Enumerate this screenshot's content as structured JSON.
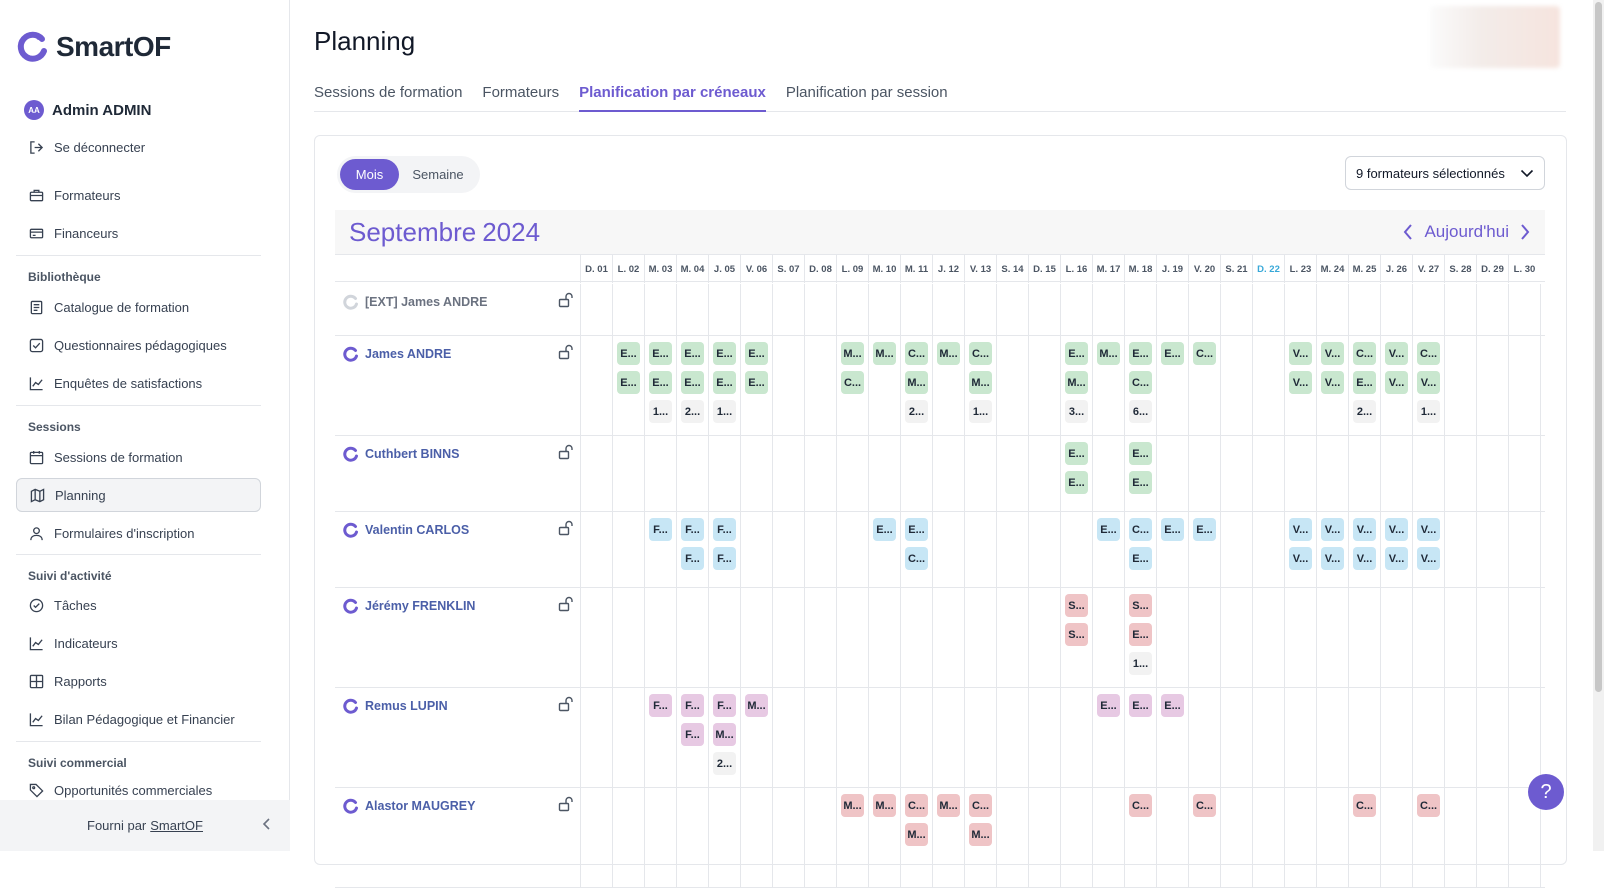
{
  "brand": {
    "name": "SmartOF"
  },
  "user": {
    "initials": "AA",
    "name": "Admin ADMIN"
  },
  "nav": {
    "logout": "Se déconnecter",
    "formateurs": "Formateurs",
    "financeurs": "Financeurs",
    "bibliotheque_title": "Bibliothèque",
    "catalogue": "Catalogue de formation",
    "questionnaires": "Questionnaires pédagogiques",
    "enquetes": "Enquêtes de satisfactions",
    "sessions_title": "Sessions",
    "sessions": "Sessions de formation",
    "planning": "Planning",
    "formulaires": "Formulaires d'inscription",
    "suivi_activite_title": "Suivi d'activité",
    "taches": "Tâches",
    "indicateurs": "Indicateurs",
    "rapports": "Rapports",
    "bilan": "Bilan Pédagogique et Financier",
    "suivi_commercial_title": "Suivi commercial",
    "opportunites": "Opportunités commerciales"
  },
  "footer": {
    "text": "Fourni par",
    "link": "SmartOF"
  },
  "page": {
    "title": "Planning"
  },
  "tabs": [
    "Sessions de formation",
    "Formateurs",
    "Planification par créneaux",
    "Planification par session"
  ],
  "view_toggle": {
    "month": "Mois",
    "week": "Semaine"
  },
  "trainer_select": {
    "value": "9 formateurs sélectionnés"
  },
  "calendar": {
    "month": "Septembre",
    "year": "2024",
    "today_label": "Aujourd'hui",
    "days": [
      "D. 01",
      "L. 02",
      "M. 03",
      "M. 04",
      "J. 05",
      "V. 06",
      "S. 07",
      "D. 08",
      "L. 09",
      "M. 10",
      "M. 11",
      "J. 12",
      "V. 13",
      "S. 14",
      "D. 15",
      "L. 16",
      "M. 17",
      "M. 18",
      "J. 19",
      "V. 20",
      "S. 21",
      "D. 22",
      "L. 23",
      "M. 24",
      "M. 25",
      "J. 26",
      "V. 27",
      "S. 28",
      "D. 29",
      "L. 30"
    ],
    "today_index": 21
  },
  "trainers": [
    {
      "name": "[EXT] James ANDRE",
      "ext": true,
      "events": []
    },
    {
      "name": "James ANDRE",
      "ext": false,
      "events": [
        {
          "day": 1,
          "slot": 0,
          "t": "E...",
          "c": "g"
        },
        {
          "day": 1,
          "slot": 1,
          "t": "E...",
          "c": "g"
        },
        {
          "day": 2,
          "slot": 0,
          "t": "E...",
          "c": "g"
        },
        {
          "day": 2,
          "slot": 1,
          "t": "E...",
          "c": "g"
        },
        {
          "day": 2,
          "slot": 2,
          "t": "1...",
          "c": "n"
        },
        {
          "day": 3,
          "slot": 0,
          "t": "E...",
          "c": "g"
        },
        {
          "day": 3,
          "slot": 1,
          "t": "E...",
          "c": "g"
        },
        {
          "day": 3,
          "slot": 2,
          "t": "2...",
          "c": "n"
        },
        {
          "day": 4,
          "slot": 0,
          "t": "E...",
          "c": "g"
        },
        {
          "day": 4,
          "slot": 1,
          "t": "E...",
          "c": "g"
        },
        {
          "day": 4,
          "slot": 2,
          "t": "1...",
          "c": "n"
        },
        {
          "day": 5,
          "slot": 0,
          "t": "E...",
          "c": "g"
        },
        {
          "day": 5,
          "slot": 1,
          "t": "E...",
          "c": "g"
        },
        {
          "day": 8,
          "slot": 0,
          "t": "M...",
          "c": "g"
        },
        {
          "day": 8,
          "slot": 1,
          "t": "C...",
          "c": "g"
        },
        {
          "day": 9,
          "slot": 0,
          "t": "M...",
          "c": "g"
        },
        {
          "day": 10,
          "slot": 0,
          "t": "C...",
          "c": "g"
        },
        {
          "day": 10,
          "slot": 1,
          "t": "M...",
          "c": "g"
        },
        {
          "day": 10,
          "slot": 2,
          "t": "2...",
          "c": "n"
        },
        {
          "day": 11,
          "slot": 0,
          "t": "M...",
          "c": "g"
        },
        {
          "day": 12,
          "slot": 0,
          "t": "C...",
          "c": "g"
        },
        {
          "day": 12,
          "slot": 1,
          "t": "M...",
          "c": "g"
        },
        {
          "day": 12,
          "slot": 2,
          "t": "1...",
          "c": "n"
        },
        {
          "day": 15,
          "slot": 0,
          "t": "E...",
          "c": "g"
        },
        {
          "day": 15,
          "slot": 1,
          "t": "M...",
          "c": "g"
        },
        {
          "day": 15,
          "slot": 2,
          "t": "3...",
          "c": "n"
        },
        {
          "day": 16,
          "slot": 0,
          "t": "M...",
          "c": "g"
        },
        {
          "day": 17,
          "slot": 0,
          "t": "E...",
          "c": "g"
        },
        {
          "day": 17,
          "slot": 1,
          "t": "C...",
          "c": "g"
        },
        {
          "day": 17,
          "slot": 2,
          "t": "6...",
          "c": "n"
        },
        {
          "day": 18,
          "slot": 0,
          "t": "E...",
          "c": "g"
        },
        {
          "day": 19,
          "slot": 0,
          "t": "C...",
          "c": "g"
        },
        {
          "day": 22,
          "slot": 0,
          "t": "V...",
          "c": "g"
        },
        {
          "day": 22,
          "slot": 1,
          "t": "V...",
          "c": "g"
        },
        {
          "day": 23,
          "slot": 0,
          "t": "V...",
          "c": "g"
        },
        {
          "day": 23,
          "slot": 1,
          "t": "V...",
          "c": "g"
        },
        {
          "day": 24,
          "slot": 0,
          "t": "C...",
          "c": "g"
        },
        {
          "day": 24,
          "slot": 1,
          "t": "E...",
          "c": "g"
        },
        {
          "day": 24,
          "slot": 2,
          "t": "2...",
          "c": "n"
        },
        {
          "day": 25,
          "slot": 0,
          "t": "V...",
          "c": "g"
        },
        {
          "day": 25,
          "slot": 1,
          "t": "V...",
          "c": "g"
        },
        {
          "day": 26,
          "slot": 0,
          "t": "C...",
          "c": "g"
        },
        {
          "day": 26,
          "slot": 1,
          "t": "V...",
          "c": "g"
        },
        {
          "day": 26,
          "slot": 2,
          "t": "1...",
          "c": "n"
        }
      ]
    },
    {
      "name": "Cuthbert BINNS",
      "ext": false,
      "events": [
        {
          "day": 15,
          "slot": 0,
          "t": "E...",
          "c": "g"
        },
        {
          "day": 15,
          "slot": 1,
          "t": "E...",
          "c": "g"
        },
        {
          "day": 17,
          "slot": 0,
          "t": "E...",
          "c": "g"
        },
        {
          "day": 17,
          "slot": 1,
          "t": "E...",
          "c": "g"
        }
      ]
    },
    {
      "name": "Valentin CARLOS",
      "ext": false,
      "events": [
        {
          "day": 2,
          "slot": 0,
          "t": "F...",
          "c": "b"
        },
        {
          "day": 3,
          "slot": 0,
          "t": "F...",
          "c": "b"
        },
        {
          "day": 3,
          "slot": 1,
          "t": "F...",
          "c": "b"
        },
        {
          "day": 4,
          "slot": 0,
          "t": "F...",
          "c": "b"
        },
        {
          "day": 4,
          "slot": 1,
          "t": "F...",
          "c": "b"
        },
        {
          "day": 9,
          "slot": 0,
          "t": "E...",
          "c": "b"
        },
        {
          "day": 10,
          "slot": 0,
          "t": "E...",
          "c": "b"
        },
        {
          "day": 10,
          "slot": 1,
          "t": "C...",
          "c": "b"
        },
        {
          "day": 16,
          "slot": 0,
          "t": "E...",
          "c": "b"
        },
        {
          "day": 17,
          "slot": 0,
          "t": "C...",
          "c": "b"
        },
        {
          "day": 17,
          "slot": 1,
          "t": "E...",
          "c": "b"
        },
        {
          "day": 18,
          "slot": 0,
          "t": "E...",
          "c": "b"
        },
        {
          "day": 19,
          "slot": 0,
          "t": "E...",
          "c": "b"
        },
        {
          "day": 22,
          "slot": 0,
          "t": "V...",
          "c": "b"
        },
        {
          "day": 22,
          "slot": 1,
          "t": "V...",
          "c": "b"
        },
        {
          "day": 23,
          "slot": 0,
          "t": "V...",
          "c": "b"
        },
        {
          "day": 23,
          "slot": 1,
          "t": "V...",
          "c": "b"
        },
        {
          "day": 24,
          "slot": 0,
          "t": "V...",
          "c": "b"
        },
        {
          "day": 24,
          "slot": 1,
          "t": "V...",
          "c": "b"
        },
        {
          "day": 25,
          "slot": 0,
          "t": "V...",
          "c": "b"
        },
        {
          "day": 25,
          "slot": 1,
          "t": "V...",
          "c": "b"
        },
        {
          "day": 26,
          "slot": 0,
          "t": "V...",
          "c": "b"
        },
        {
          "day": 26,
          "slot": 1,
          "t": "V...",
          "c": "b"
        }
      ]
    },
    {
      "name": "Jérémy FRENKLIN",
      "ext": false,
      "events": [
        {
          "day": 15,
          "slot": 0,
          "t": "S...",
          "c": "r"
        },
        {
          "day": 15,
          "slot": 1,
          "t": "S...",
          "c": "r"
        },
        {
          "day": 17,
          "slot": 0,
          "t": "S...",
          "c": "r"
        },
        {
          "day": 17,
          "slot": 1,
          "t": "E...",
          "c": "r"
        },
        {
          "day": 17,
          "slot": 2,
          "t": "1...",
          "c": "n"
        }
      ]
    },
    {
      "name": "Remus LUPIN",
      "ext": false,
      "events": [
        {
          "day": 2,
          "slot": 0,
          "t": "F...",
          "c": "p"
        },
        {
          "day": 3,
          "slot": 0,
          "t": "F...",
          "c": "p"
        },
        {
          "day": 3,
          "slot": 1,
          "t": "F...",
          "c": "p"
        },
        {
          "day": 4,
          "slot": 0,
          "t": "F...",
          "c": "p"
        },
        {
          "day": 4,
          "slot": 1,
          "t": "M...",
          "c": "p"
        },
        {
          "day": 4,
          "slot": 2,
          "t": "2...",
          "c": "n"
        },
        {
          "day": 5,
          "slot": 0,
          "t": "M...",
          "c": "p"
        },
        {
          "day": 16,
          "slot": 0,
          "t": "E...",
          "c": "p"
        },
        {
          "day": 17,
          "slot": 0,
          "t": "E...",
          "c": "p"
        },
        {
          "day": 18,
          "slot": 0,
          "t": "E...",
          "c": "p"
        }
      ]
    },
    {
      "name": "Alastor MAUGREY",
      "ext": false,
      "events": [
        {
          "day": 8,
          "slot": 0,
          "t": "M...",
          "c": "r"
        },
        {
          "day": 9,
          "slot": 0,
          "t": "M...",
          "c": "r"
        },
        {
          "day": 10,
          "slot": 0,
          "t": "C...",
          "c": "r"
        },
        {
          "day": 10,
          "slot": 1,
          "t": "M...",
          "c": "r"
        },
        {
          "day": 11,
          "slot": 0,
          "t": "M...",
          "c": "r"
        },
        {
          "day": 12,
          "slot": 0,
          "t": "C...",
          "c": "r"
        },
        {
          "day": 12,
          "slot": 1,
          "t": "M...",
          "c": "r"
        },
        {
          "day": 17,
          "slot": 0,
          "t": "C...",
          "c": "r"
        },
        {
          "day": 19,
          "slot": 0,
          "t": "C...",
          "c": "r"
        },
        {
          "day": 24,
          "slot": 0,
          "t": "C...",
          "c": "r"
        },
        {
          "day": 26,
          "slot": 0,
          "t": "C...",
          "c": "r"
        }
      ]
    }
  ],
  "colors": {
    "accent": "#6d5bd0",
    "today": "#38a8d8",
    "event_green": "#c9e7cf",
    "event_blue": "#c7e6f5",
    "event_red": "#efc4c6",
    "event_purple": "#e7c9e3"
  },
  "help": {
    "label": "?"
  }
}
